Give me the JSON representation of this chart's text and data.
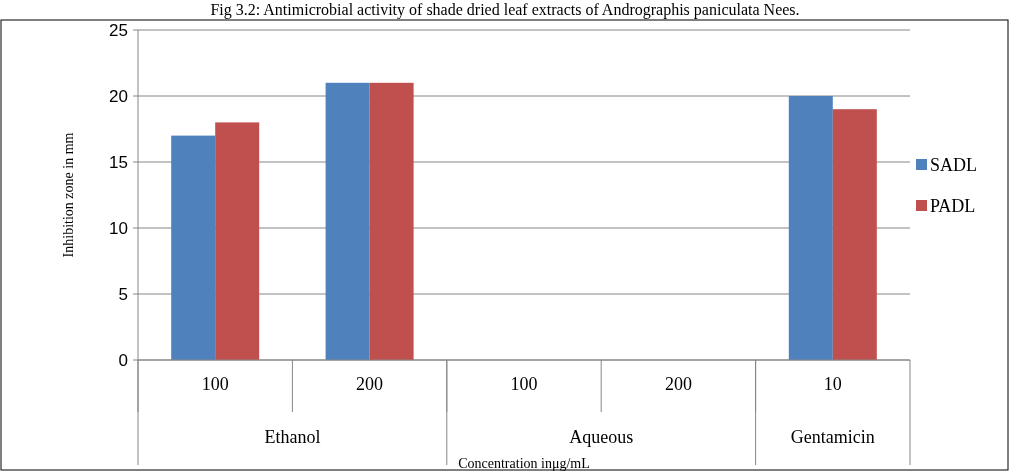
{
  "chart_data": {
    "type": "bar",
    "title": "Fig 3.2: Antimicrobial activity of shade dried leaf extracts of Andrographis paniculata Nees.",
    "ylabel": "Inhibition zone in mm",
    "xlabel": "Concentration inμg/mL",
    "categories": [
      "100",
      "200",
      "100",
      "200",
      "10"
    ],
    "series": [
      {
        "name": "SADL",
        "color": "#4f81bd",
        "values": [
          17,
          21,
          0,
          0,
          20
        ]
      },
      {
        "name": "PADL",
        "color": "#c0504d",
        "values": [
          18,
          21,
          0,
          0,
          19
        ]
      }
    ],
    "annotations": [
      "Ethanol",
      "Aqueous",
      "Gentamicin"
    ],
    "ylim": [
      0,
      25
    ],
    "yticks": [
      0,
      5,
      10,
      15,
      20,
      25
    ],
    "grid": "y",
    "legend": "right"
  }
}
